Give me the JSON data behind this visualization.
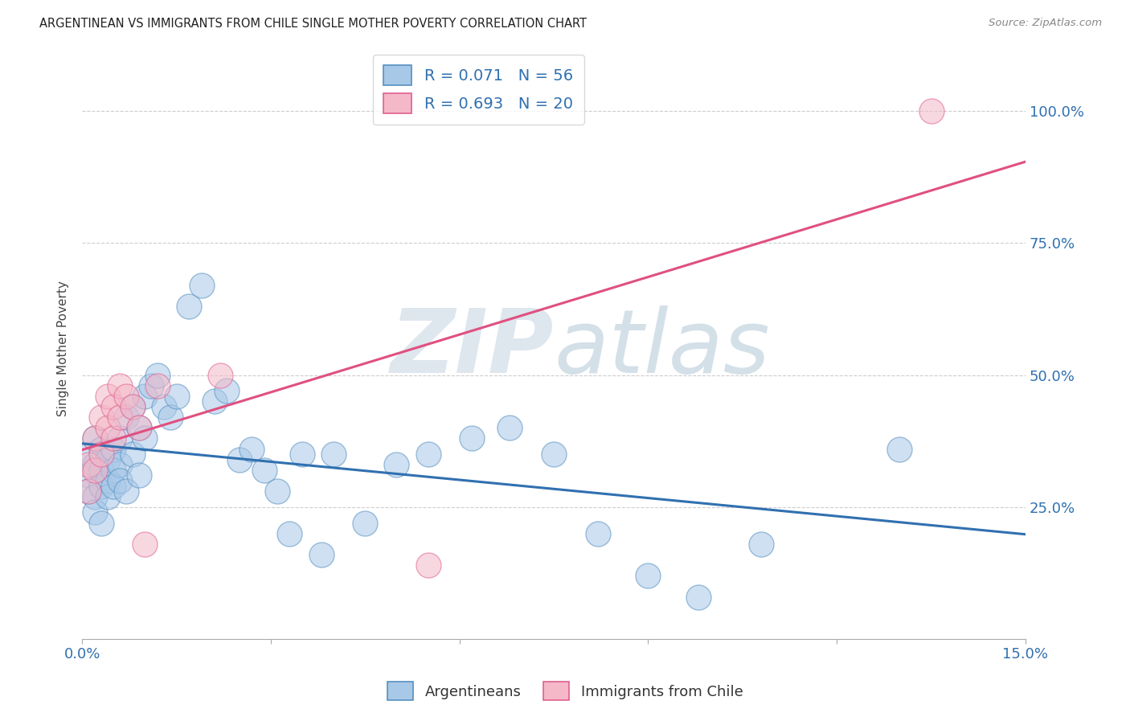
{
  "title": "ARGENTINEAN VS IMMIGRANTS FROM CHILE SINGLE MOTHER POVERTY CORRELATION CHART",
  "source": "Source: ZipAtlas.com",
  "ylabel": "Single Mother Poverty",
  "ytick_labels": [
    "25.0%",
    "50.0%",
    "75.0%",
    "100.0%"
  ],
  "ytick_values": [
    0.25,
    0.5,
    0.75,
    1.0
  ],
  "xlim": [
    0.0,
    0.15
  ],
  "ylim": [
    0.0,
    1.1
  ],
  "argentineans_x": [
    0.001,
    0.001,
    0.001,
    0.002,
    0.002,
    0.002,
    0.002,
    0.003,
    0.003,
    0.003,
    0.003,
    0.004,
    0.004,
    0.004,
    0.005,
    0.005,
    0.005,
    0.006,
    0.006,
    0.006,
    0.007,
    0.007,
    0.008,
    0.008,
    0.009,
    0.009,
    0.01,
    0.01,
    0.011,
    0.012,
    0.013,
    0.014,
    0.015,
    0.017,
    0.019,
    0.021,
    0.023,
    0.025,
    0.027,
    0.029,
    0.031,
    0.033,
    0.035,
    0.038,
    0.04,
    0.045,
    0.05,
    0.055,
    0.062,
    0.068,
    0.075,
    0.082,
    0.09,
    0.098,
    0.108,
    0.13
  ],
  "argentineans_y": [
    0.35,
    0.31,
    0.28,
    0.38,
    0.33,
    0.27,
    0.24,
    0.32,
    0.29,
    0.36,
    0.22,
    0.3,
    0.34,
    0.27,
    0.36,
    0.32,
    0.29,
    0.38,
    0.33,
    0.3,
    0.42,
    0.28,
    0.44,
    0.35,
    0.4,
    0.31,
    0.46,
    0.38,
    0.48,
    0.5,
    0.44,
    0.42,
    0.46,
    0.63,
    0.67,
    0.45,
    0.47,
    0.34,
    0.36,
    0.32,
    0.28,
    0.2,
    0.35,
    0.16,
    0.35,
    0.22,
    0.33,
    0.35,
    0.38,
    0.4,
    0.35,
    0.2,
    0.12,
    0.08,
    0.18,
    0.36
  ],
  "chile_x": [
    0.001,
    0.001,
    0.002,
    0.002,
    0.003,
    0.003,
    0.004,
    0.004,
    0.005,
    0.005,
    0.006,
    0.006,
    0.007,
    0.008,
    0.009,
    0.01,
    0.012,
    0.022,
    0.055,
    0.135
  ],
  "chile_y": [
    0.33,
    0.28,
    0.38,
    0.32,
    0.42,
    0.35,
    0.46,
    0.4,
    0.44,
    0.38,
    0.48,
    0.42,
    0.46,
    0.44,
    0.4,
    0.18,
    0.48,
    0.5,
    0.14,
    1.0
  ],
  "blue_color": "#a8c8e8",
  "pink_color": "#f4b8c8",
  "blue_edge_color": "#5590c0",
  "pink_edge_color": "#e06090",
  "blue_line_color": "#3070b0",
  "pink_line_color": "#e05080",
  "watermark_zip_color": "#d0dde8",
  "watermark_atlas_color": "#b8ccd8",
  "legend_blue_label": "R = 0.071   N = 56",
  "legend_pink_label": "R = 0.693   N = 20",
  "bottom_legend_blue": "Argentineans",
  "bottom_legend_pink": "Immigrants from Chile"
}
